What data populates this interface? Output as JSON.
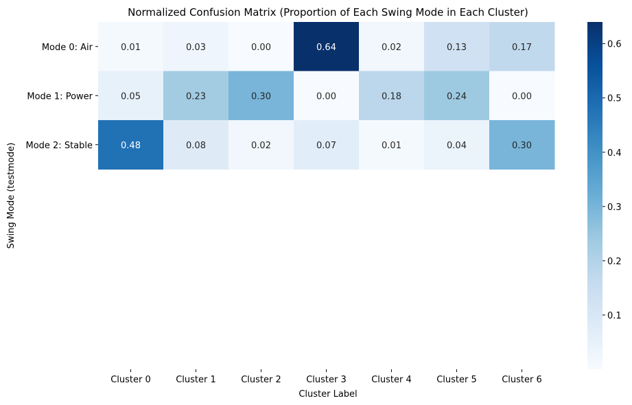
{
  "chart_data": {
    "type": "heatmap",
    "title": "Normalized Confusion Matrix (Proportion of Each Swing Mode in Each Cluster)",
    "xlabel": "Cluster Label",
    "ylabel": "Swing Mode (testmode)",
    "x_categories": [
      "Cluster 0",
      "Cluster 1",
      "Cluster 2",
      "Cluster 3",
      "Cluster 4",
      "Cluster 5",
      "Cluster 6"
    ],
    "y_categories": [
      "Mode 0: Air",
      "Mode 1: Power",
      "Mode 2: Stable"
    ],
    "values": [
      [
        0.01,
        0.03,
        0.0,
        0.64,
        0.02,
        0.13,
        0.17
      ],
      [
        0.05,
        0.23,
        0.3,
        0.0,
        0.18,
        0.24,
        0.0
      ],
      [
        0.48,
        0.08,
        0.02,
        0.07,
        0.01,
        0.04,
        0.3
      ]
    ],
    "value_format": "0.00",
    "colormap": "Blues",
    "vmin": 0.0,
    "vmax": 0.64,
    "colorbar_ticks": [
      0.1,
      0.2,
      0.3,
      0.4,
      0.5,
      0.6
    ],
    "colorbar_tick_labels": [
      "0.1",
      "0.2",
      "0.3",
      "0.4",
      "0.5",
      "0.6"
    ],
    "grid": false,
    "legend": "colorbar-right"
  }
}
